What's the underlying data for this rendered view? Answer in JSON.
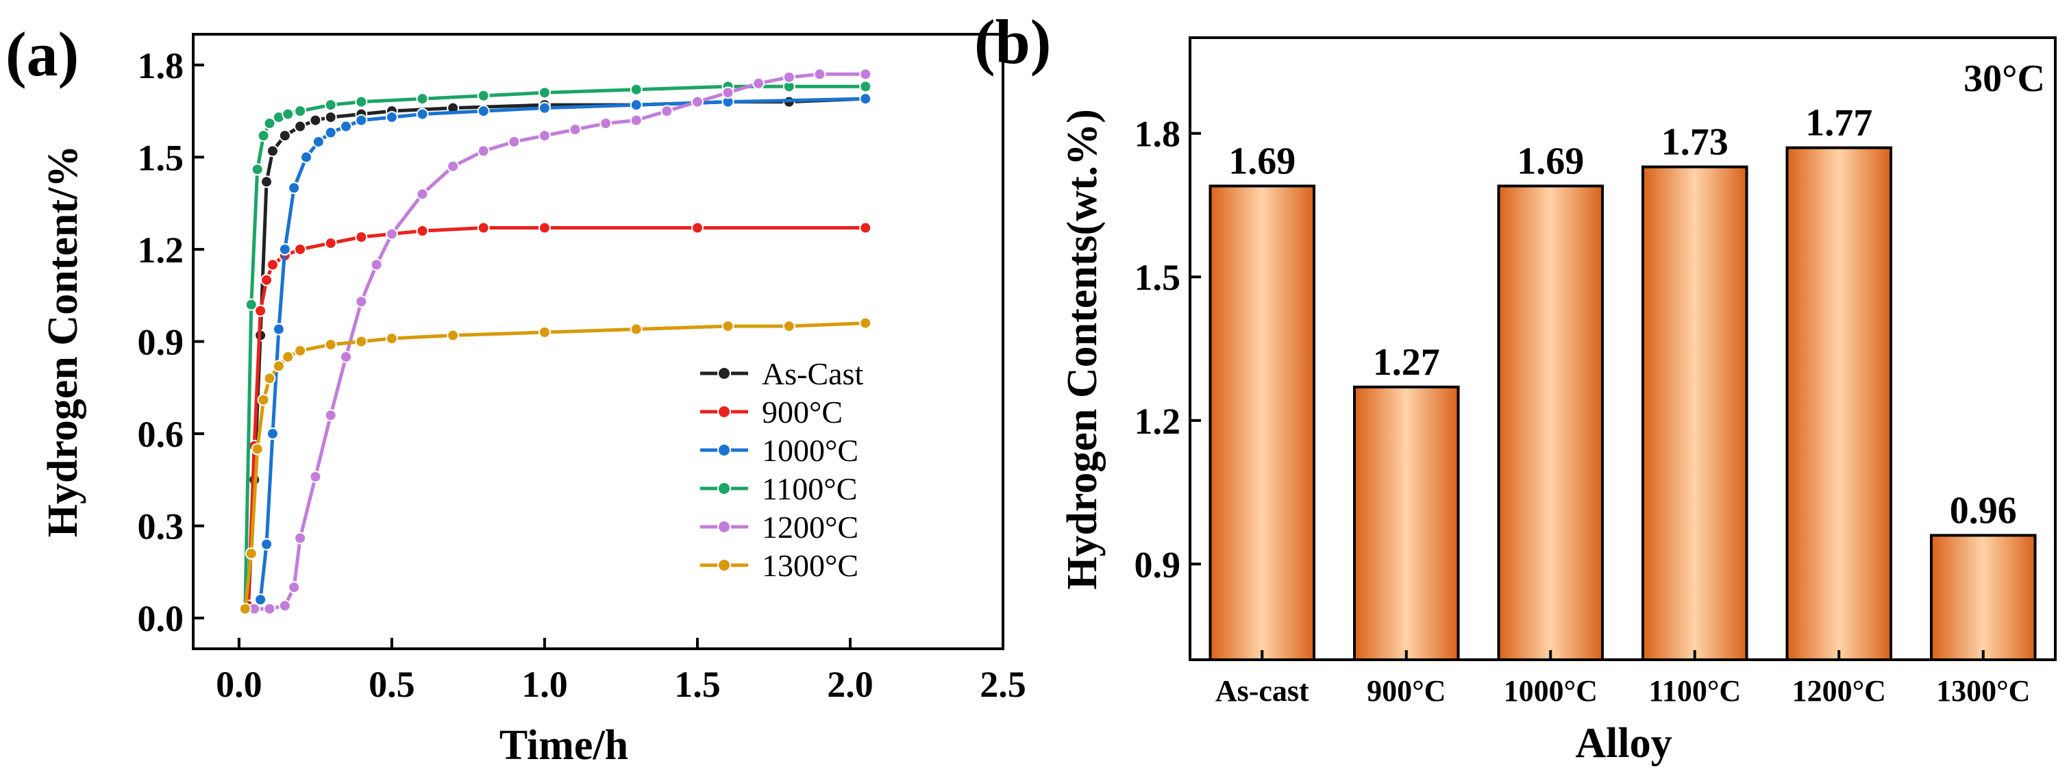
{
  "chart_data": [
    {
      "panel_label": "(a)",
      "type": "line",
      "xlabel": "Time/h",
      "ylabel": "Hydrogen Content/%",
      "xlim": [
        -0.15,
        2.5
      ],
      "ylim": [
        -0.1,
        1.9
      ],
      "xticks": [
        "0.0",
        "0.5",
        "1.0",
        "1.5",
        "2.0",
        "2.5"
      ],
      "yticks": [
        "0.0",
        "0.3",
        "0.6",
        "0.9",
        "1.2",
        "1.5",
        "1.8"
      ],
      "legend_position": "lower-right",
      "series": [
        {
          "name": "As-Cast",
          "color": "#222222",
          "x": [
            0.03,
            0.05,
            0.07,
            0.09,
            0.11,
            0.15,
            0.2,
            0.25,
            0.3,
            0.4,
            0.5,
            0.7,
            1.0,
            1.3,
            1.6,
            1.8,
            2.05
          ],
          "y": [
            0.03,
            0.45,
            0.92,
            1.42,
            1.52,
            1.57,
            1.6,
            1.62,
            1.63,
            1.64,
            1.65,
            1.66,
            1.67,
            1.67,
            1.68,
            1.68,
            1.69
          ]
        },
        {
          "name": "900°C",
          "color": "#e8231c",
          "x": [
            0.03,
            0.05,
            0.07,
            0.09,
            0.11,
            0.15,
            0.2,
            0.3,
            0.4,
            0.5,
            0.6,
            0.8,
            1.0,
            1.5,
            2.05
          ],
          "y": [
            0.04,
            0.56,
            1.0,
            1.1,
            1.15,
            1.18,
            1.2,
            1.22,
            1.24,
            1.25,
            1.26,
            1.27,
            1.27,
            1.27,
            1.27
          ]
        },
        {
          "name": "1000°C",
          "color": "#1a73d1",
          "x": [
            0.05,
            0.07,
            0.09,
            0.11,
            0.13,
            0.15,
            0.18,
            0.22,
            0.26,
            0.3,
            0.35,
            0.4,
            0.5,
            0.6,
            0.8,
            1.0,
            1.3,
            1.6,
            2.05
          ],
          "y": [
            0.03,
            0.06,
            0.24,
            0.6,
            0.94,
            1.2,
            1.4,
            1.5,
            1.55,
            1.58,
            1.6,
            1.62,
            1.63,
            1.64,
            1.65,
            1.66,
            1.67,
            1.68,
            1.69
          ]
        },
        {
          "name": "1100°C",
          "color": "#1ba566",
          "x": [
            0.02,
            0.04,
            0.06,
            0.08,
            0.1,
            0.13,
            0.16,
            0.2,
            0.3,
            0.4,
            0.6,
            0.8,
            1.0,
            1.3,
            1.6,
            1.8,
            2.05
          ],
          "y": [
            0.03,
            1.02,
            1.46,
            1.57,
            1.61,
            1.63,
            1.64,
            1.65,
            1.67,
            1.68,
            1.69,
            1.7,
            1.71,
            1.72,
            1.73,
            1.73,
            1.73
          ]
        },
        {
          "name": "1200°C",
          "color": "#c27ddb",
          "x": [
            0.05,
            0.1,
            0.15,
            0.18,
            0.2,
            0.25,
            0.3,
            0.35,
            0.4,
            0.45,
            0.5,
            0.6,
            0.7,
            0.8,
            0.9,
            1.0,
            1.1,
            1.2,
            1.3,
            1.4,
            1.5,
            1.6,
            1.7,
            1.8,
            1.9,
            2.05
          ],
          "y": [
            0.03,
            0.03,
            0.04,
            0.1,
            0.26,
            0.46,
            0.66,
            0.85,
            1.03,
            1.15,
            1.25,
            1.38,
            1.47,
            1.52,
            1.55,
            1.57,
            1.59,
            1.61,
            1.62,
            1.65,
            1.68,
            1.71,
            1.74,
            1.76,
            1.77,
            1.77
          ]
        },
        {
          "name": "1300°C",
          "color": "#d89a0b",
          "x": [
            0.02,
            0.04,
            0.06,
            0.08,
            0.1,
            0.13,
            0.16,
            0.2,
            0.3,
            0.4,
            0.5,
            0.7,
            1.0,
            1.3,
            1.6,
            1.8,
            2.05
          ],
          "y": [
            0.03,
            0.21,
            0.55,
            0.71,
            0.78,
            0.82,
            0.85,
            0.87,
            0.89,
            0.9,
            0.91,
            0.92,
            0.93,
            0.94,
            0.95,
            0.95,
            0.96
          ]
        }
      ]
    },
    {
      "panel_label": "(b)",
      "type": "bar",
      "xlabel": "Alloy",
      "ylabel": "Hydrogen Contents(wt.%)",
      "annotation": "30°C",
      "ylim": [
        0.7,
        2.0
      ],
      "yticks": [
        "0.9",
        "1.2",
        "1.5",
        "1.8"
      ],
      "categories": [
        "As-cast",
        "900°C",
        "1000°C",
        "1100°C",
        "1200°C",
        "1300°C"
      ],
      "values": [
        1.69,
        1.27,
        1.69,
        1.73,
        1.77,
        0.96
      ],
      "value_labels": [
        "1.69",
        "1.27",
        "1.69",
        "1.73",
        "1.77",
        "0.96"
      ],
      "bar_color_edge": "#d9621a",
      "bar_color_center": "#ffd3a8"
    }
  ]
}
